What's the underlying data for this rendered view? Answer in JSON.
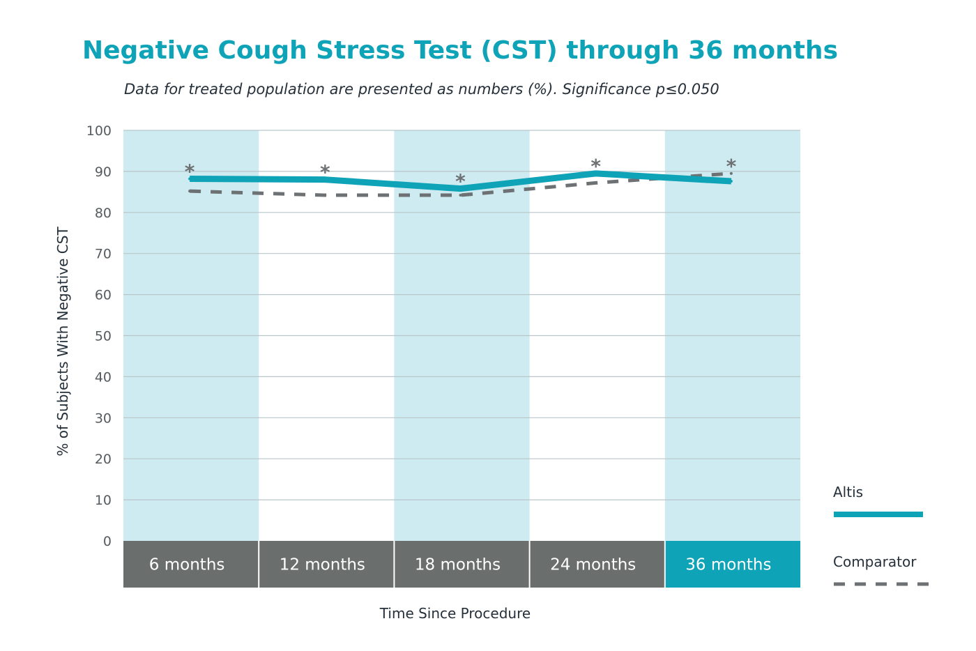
{
  "chart_data": {
    "type": "line",
    "title": "Negative Cough Stress Test (CST) through 36 months",
    "subtitle": "Data for treated population are presented as numbers (%). Significance p≤0.050",
    "xlabel": "Time Since Procedure",
    "ylabel": "% of Subjects With Negative CST",
    "ylim": [
      0,
      100
    ],
    "yticks": [
      "0",
      "10",
      "20",
      "30",
      "40",
      "50",
      "60",
      "70",
      "80",
      "90",
      "100"
    ],
    "categories": [
      "6 months",
      "12 months",
      "18 months",
      "24 months",
      "36 months"
    ],
    "highlighted_category": "36 months",
    "significance_marker": "*",
    "grid": true,
    "legend_position": "bottom-right",
    "series": [
      {
        "name": "Altis",
        "values": [
          88.2,
          88.0,
          85.8,
          89.5,
          87.6
        ],
        "style": "solid",
        "color": "#0fa3b8"
      },
      {
        "name": "Comparator",
        "values": [
          85.2,
          84.2,
          84.2,
          87.2,
          89.5
        ],
        "style": "dashed",
        "color": "#6d7173"
      }
    ],
    "colors": {
      "band": "#cdebf0",
      "category_bar": "#6a6e6d",
      "category_bar_highlight": "#0fa3b8",
      "title": "#0fa3b8",
      "gridline": "#b9c6ca"
    }
  }
}
